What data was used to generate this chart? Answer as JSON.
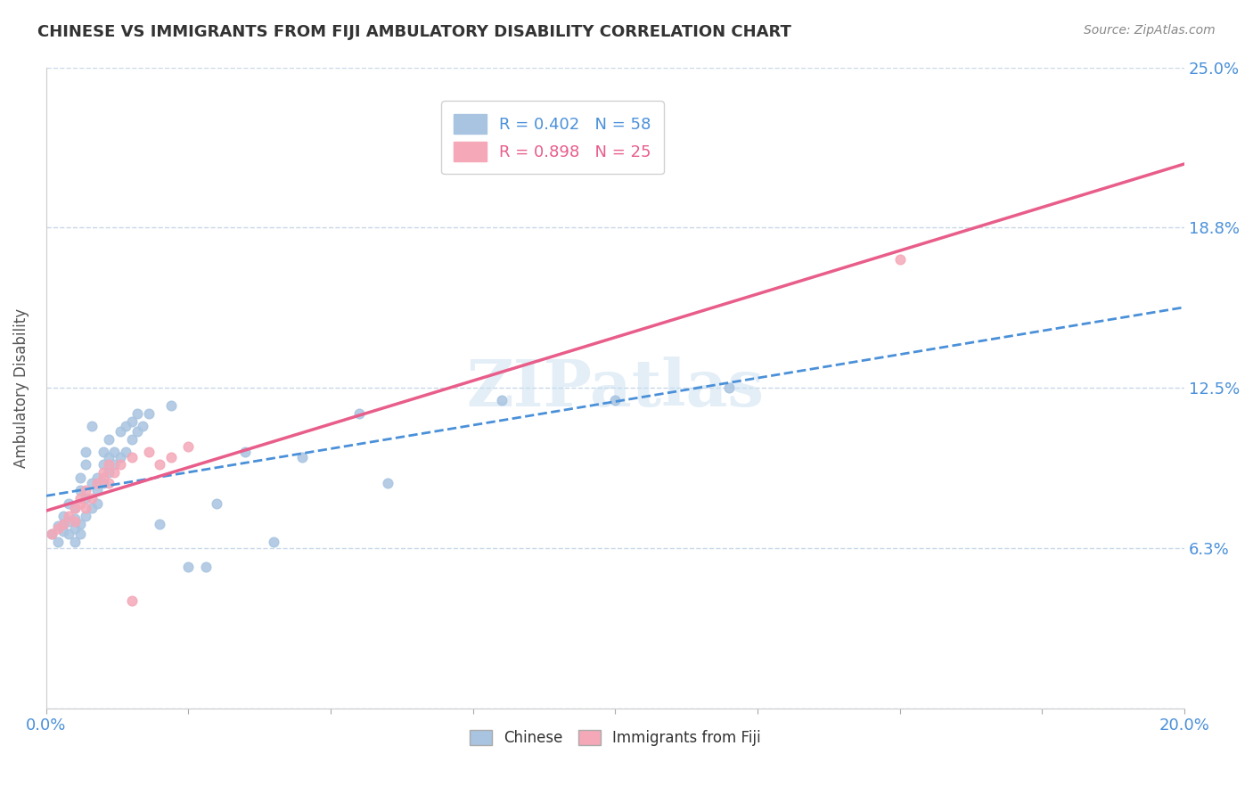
{
  "title": "CHINESE VS IMMIGRANTS FROM FIJI AMBULATORY DISABILITY CORRELATION CHART",
  "source_text": "Source: ZipAtlas.com",
  "ylabel": "Ambulatory Disability",
  "xlim": [
    0.0,
    0.2
  ],
  "ylim": [
    0.0,
    0.25
  ],
  "chinese_R": 0.402,
  "chinese_N": 58,
  "fiji_R": 0.898,
  "fiji_N": 25,
  "chinese_color": "#a8c4e0",
  "fiji_color": "#f4a8b8",
  "chinese_line_color": "#4a90d9",
  "fiji_line_color": "#e85d8a",
  "chinese_scatter": [
    [
      0.001,
      0.068
    ],
    [
      0.002,
      0.071
    ],
    [
      0.002,
      0.065
    ],
    [
      0.003,
      0.072
    ],
    [
      0.003,
      0.069
    ],
    [
      0.003,
      0.075
    ],
    [
      0.004,
      0.068
    ],
    [
      0.004,
      0.073
    ],
    [
      0.004,
      0.08
    ],
    [
      0.005,
      0.07
    ],
    [
      0.005,
      0.074
    ],
    [
      0.005,
      0.078
    ],
    [
      0.005,
      0.065
    ],
    [
      0.006,
      0.072
    ],
    [
      0.006,
      0.068
    ],
    [
      0.006,
      0.085
    ],
    [
      0.006,
      0.09
    ],
    [
      0.007,
      0.075
    ],
    [
      0.007,
      0.082
    ],
    [
      0.007,
      0.095
    ],
    [
      0.007,
      0.1
    ],
    [
      0.008,
      0.078
    ],
    [
      0.008,
      0.088
    ],
    [
      0.008,
      0.11
    ],
    [
      0.009,
      0.08
    ],
    [
      0.009,
      0.085
    ],
    [
      0.009,
      0.09
    ],
    [
      0.01,
      0.088
    ],
    [
      0.01,
      0.095
    ],
    [
      0.01,
      0.1
    ],
    [
      0.011,
      0.092
    ],
    [
      0.011,
      0.098
    ],
    [
      0.011,
      0.105
    ],
    [
      0.012,
      0.095
    ],
    [
      0.012,
      0.1
    ],
    [
      0.013,
      0.098
    ],
    [
      0.013,
      0.108
    ],
    [
      0.014,
      0.1
    ],
    [
      0.014,
      0.11
    ],
    [
      0.015,
      0.105
    ],
    [
      0.015,
      0.112
    ],
    [
      0.016,
      0.108
    ],
    [
      0.016,
      0.115
    ],
    [
      0.017,
      0.11
    ],
    [
      0.018,
      0.115
    ],
    [
      0.02,
      0.072
    ],
    [
      0.022,
      0.118
    ],
    [
      0.025,
      0.055
    ],
    [
      0.028,
      0.055
    ],
    [
      0.03,
      0.08
    ],
    [
      0.035,
      0.1
    ],
    [
      0.04,
      0.065
    ],
    [
      0.045,
      0.098
    ],
    [
      0.055,
      0.115
    ],
    [
      0.06,
      0.088
    ],
    [
      0.08,
      0.12
    ],
    [
      0.1,
      0.12
    ],
    [
      0.12,
      0.125
    ]
  ],
  "fiji_scatter": [
    [
      0.001,
      0.068
    ],
    [
      0.002,
      0.07
    ],
    [
      0.003,
      0.072
    ],
    [
      0.004,
      0.075
    ],
    [
      0.005,
      0.073
    ],
    [
      0.005,
      0.078
    ],
    [
      0.006,
      0.08
    ],
    [
      0.006,
      0.082
    ],
    [
      0.007,
      0.078
    ],
    [
      0.007,
      0.085
    ],
    [
      0.008,
      0.082
    ],
    [
      0.009,
      0.088
    ],
    [
      0.01,
      0.09
    ],
    [
      0.01,
      0.092
    ],
    [
      0.011,
      0.088
    ],
    [
      0.011,
      0.095
    ],
    [
      0.012,
      0.092
    ],
    [
      0.013,
      0.095
    ],
    [
      0.015,
      0.042
    ],
    [
      0.015,
      0.098
    ],
    [
      0.018,
      0.1
    ],
    [
      0.02,
      0.095
    ],
    [
      0.022,
      0.098
    ],
    [
      0.025,
      0.102
    ],
    [
      0.15,
      0.175
    ]
  ],
  "watermark_text": "ZIPatlas",
  "background_color": "#ffffff",
  "grid_color": "#c8d8e8",
  "legend_text_color": "#4a90d9",
  "title_color": "#333333"
}
